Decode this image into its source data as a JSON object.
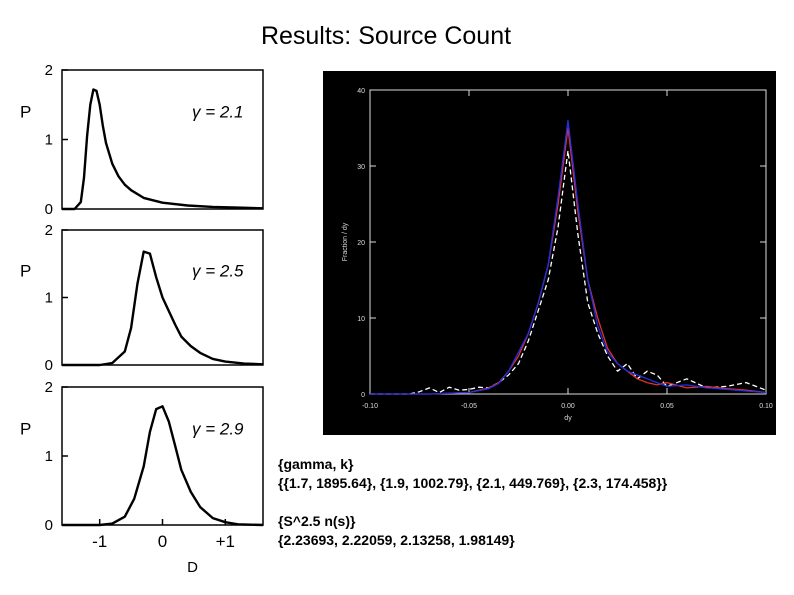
{
  "slide": {
    "title": "Results: Source Count"
  },
  "chart_data": [
    {
      "type": "line",
      "panel": "top",
      "ylabel": "P",
      "ylim": [
        0,
        2
      ],
      "yticks": [
        "0",
        "1",
        "2"
      ],
      "xlim": [
        -1.6,
        1.6
      ],
      "annotation": "γ = 2.1",
      "series": [
        {
          "x": [
            -1.6,
            -1.4,
            -1.3,
            -1.25,
            -1.2,
            -1.15,
            -1.1,
            -1.05,
            -1.0,
            -0.95,
            -0.9,
            -0.8,
            -0.7,
            -0.6,
            -0.5,
            -0.3,
            0.0,
            0.4,
            0.8,
            1.2,
            1.6
          ],
          "y": [
            0.0,
            0.0,
            0.1,
            0.45,
            1.05,
            1.5,
            1.72,
            1.7,
            1.5,
            1.2,
            0.95,
            0.65,
            0.47,
            0.35,
            0.27,
            0.16,
            0.09,
            0.05,
            0.03,
            0.02,
            0.01
          ]
        }
      ]
    },
    {
      "type": "line",
      "panel": "middle",
      "ylabel": "P",
      "ylim": [
        0,
        2
      ],
      "yticks": [
        "0",
        "1",
        "2"
      ],
      "xlim": [
        -1.6,
        1.6
      ],
      "annotation": "γ = 2.5",
      "series": [
        {
          "x": [
            -1.6,
            -1.0,
            -0.8,
            -0.6,
            -0.5,
            -0.4,
            -0.3,
            -0.2,
            -0.1,
            0.0,
            0.1,
            0.2,
            0.3,
            0.45,
            0.6,
            0.8,
            1.0,
            1.3,
            1.6
          ],
          "y": [
            0.0,
            0.0,
            0.03,
            0.2,
            0.55,
            1.2,
            1.68,
            1.65,
            1.3,
            1.0,
            0.8,
            0.6,
            0.42,
            0.28,
            0.18,
            0.09,
            0.05,
            0.02,
            0.01
          ]
        }
      ]
    },
    {
      "type": "line",
      "panel": "bottom",
      "ylabel": "P",
      "xlabel": "D",
      "ylim": [
        0,
        2
      ],
      "yticks": [
        "0",
        "1",
        "2"
      ],
      "xlim": [
        -1.6,
        1.6
      ],
      "xticks": [
        {
          "v": -1,
          "label": "-1"
        },
        {
          "v": 0,
          "label": "0"
        },
        {
          "v": 1,
          "label": "+1"
        }
      ],
      "annotation": "γ = 2.9",
      "series": [
        {
          "x": [
            -1.6,
            -1.0,
            -0.8,
            -0.6,
            -0.45,
            -0.3,
            -0.2,
            -0.1,
            0.0,
            0.1,
            0.2,
            0.3,
            0.45,
            0.6,
            0.8,
            1.0,
            1.2,
            1.6
          ],
          "y": [
            0.0,
            0.0,
            0.02,
            0.12,
            0.38,
            0.85,
            1.35,
            1.68,
            1.72,
            1.5,
            1.15,
            0.8,
            0.48,
            0.26,
            0.1,
            0.04,
            0.01,
            0.0
          ]
        }
      ]
    },
    {
      "type": "line",
      "panel": "right",
      "xlabel": "dy",
      "ylabel": "Fraction / dy",
      "xlim": [
        -0.1,
        0.1
      ],
      "ylim": [
        0,
        40
      ],
      "xticks": [
        "-0.10",
        "-0.05",
        "0.00",
        "0.05",
        "0.10"
      ],
      "yticks": [
        "0",
        "10",
        "20",
        "30",
        "40"
      ],
      "background": "#000000",
      "series": [
        {
          "color": "#ffffff",
          "dashed": true,
          "x": [
            -0.1,
            -0.09,
            -0.08,
            -0.075,
            -0.07,
            -0.065,
            -0.06,
            -0.055,
            -0.05,
            -0.045,
            -0.04,
            -0.035,
            -0.03,
            -0.025,
            -0.02,
            -0.015,
            -0.01,
            -0.005,
            0.0,
            0.005,
            0.01,
            0.015,
            0.02,
            0.025,
            0.03,
            0.035,
            0.04,
            0.045,
            0.05,
            0.06,
            0.07,
            0.08,
            0.09,
            0.1
          ],
          "y": [
            0,
            0,
            0,
            0.3,
            0.8,
            0.2,
            0.9,
            0.5,
            0.6,
            0.9,
            0.8,
            1.5,
            2.5,
            4,
            7,
            11,
            15,
            22,
            32,
            21,
            12,
            8,
            5,
            3,
            4,
            2,
            3,
            2.5,
            1,
            2,
            0.8,
            1,
            1.5,
            0.5
          ]
        },
        {
          "color": "#e03030",
          "x": [
            -0.1,
            -0.07,
            -0.05,
            -0.04,
            -0.035,
            -0.03,
            -0.025,
            -0.02,
            -0.015,
            -0.01,
            -0.005,
            0.0,
            0.005,
            0.01,
            0.015,
            0.02,
            0.025,
            0.03,
            0.035,
            0.04,
            0.045,
            0.05,
            0.06,
            0.07,
            0.08,
            0.09,
            0.1
          ],
          "y": [
            0,
            0,
            0.2,
            0.8,
            1.5,
            3,
            5,
            8,
            12,
            17,
            25,
            35,
            24,
            15,
            10,
            6,
            4,
            3,
            2,
            1.5,
            1.2,
            1.5,
            0.8,
            1,
            0.7,
            0.5,
            0.2
          ]
        },
        {
          "color": "#2030e0",
          "x": [
            -0.1,
            -0.07,
            -0.05,
            -0.04,
            -0.035,
            -0.03,
            -0.025,
            -0.02,
            -0.015,
            -0.01,
            -0.005,
            0.0,
            0.005,
            0.01,
            0.015,
            0.02,
            0.025,
            0.03,
            0.035,
            0.04,
            0.045,
            0.05,
            0.06,
            0.07,
            0.08,
            0.09,
            0.1
          ],
          "y": [
            0,
            0,
            0.2,
            0.7,
            1.4,
            3,
            5.5,
            8,
            12,
            17,
            26,
            36,
            25,
            15,
            9,
            5.5,
            4,
            3,
            2.5,
            2,
            1.5,
            1,
            1.2,
            0.8,
            0.6,
            0.4,
            0.2
          ]
        }
      ]
    }
  ],
  "info": {
    "label1": "{gamma, k}",
    "value1": "{{1.7, 1895.64}, {1.9, 1002.79}, {2.1, 449.769}, {2.3, 174.458}}",
    "label2": "{S^2.5 n(s)}",
    "value2": "{2.23693, 2.22059, 2.13258, 1.98149}"
  }
}
